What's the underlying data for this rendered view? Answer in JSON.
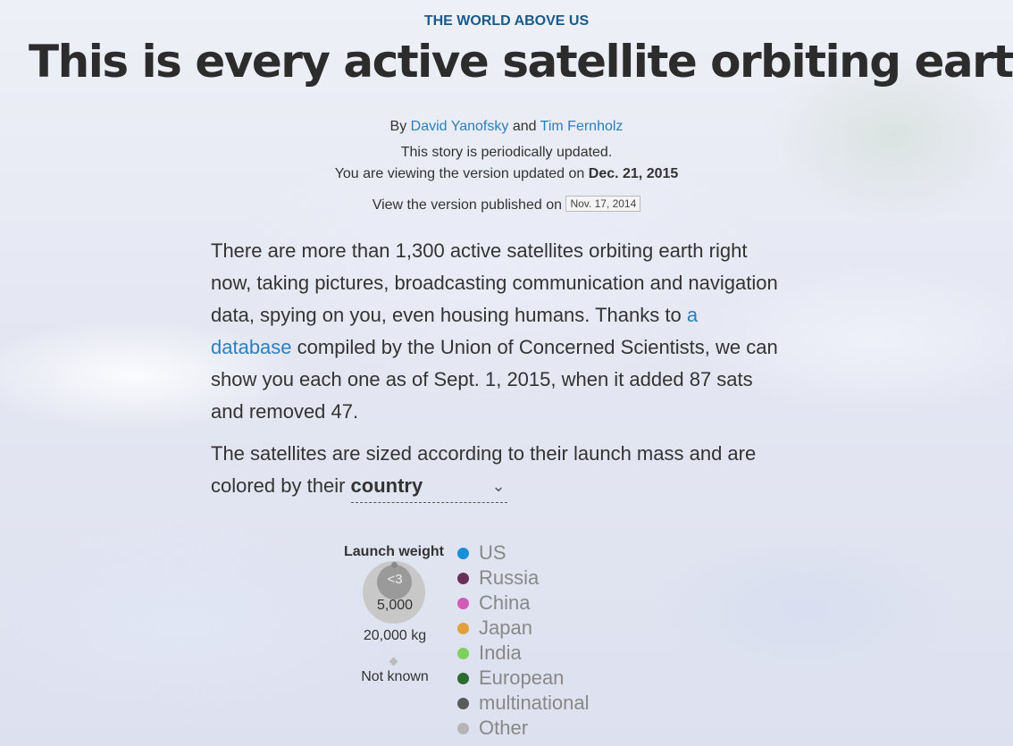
{
  "header": {
    "kicker": "THE WORLD ABOVE US",
    "title": "This is every active satellite orbiting earth"
  },
  "byline": {
    "prefix": "By",
    "author1": "David Yanofsky",
    "conjunction": "and",
    "author2": "Tim Fernholz"
  },
  "update": {
    "note": "This story is periodically updated.",
    "viewing_prefix": "You are viewing the version updated on",
    "viewing_date": "Dec. 21, 2015",
    "published_prefix": "View the version published on",
    "published_option": "Nov. 17, 2014"
  },
  "paragraph1": {
    "before_link": "There are more than 1,300 active satellites orbiting earth right now, taking pictures, broadcasting communication and navigation data, spying on you, even housing humans. Thanks to",
    "link": "a database",
    "after_link": "compiled by the Union of Concerned Scientists, we can show you each one as of Sept. 1, 2015, when it added 87 sats and removed 47."
  },
  "paragraph2": {
    "before_select": "The satellites are sized according to their launch mass and are colored by their",
    "selected": "country"
  },
  "legend": {
    "title": "Launch weight",
    "small": "<3",
    "medium": "5,000",
    "large": "20,000 kg",
    "unknown": "Not known",
    "countries": [
      {
        "label": "US",
        "color": "#1a8fd8"
      },
      {
        "label": "Russia",
        "color": "#6b2f55"
      },
      {
        "label": "China",
        "color": "#d45bb5"
      },
      {
        "label": "Japan",
        "color": "#e0a040"
      },
      {
        "label": "India",
        "color": "#7fcf5f"
      },
      {
        "label": "European",
        "color": "#2e6b2e"
      },
      {
        "label": "multinational",
        "color": "#5a5a5a"
      },
      {
        "label": "Other",
        "color": "#b5b5b5"
      }
    ]
  }
}
